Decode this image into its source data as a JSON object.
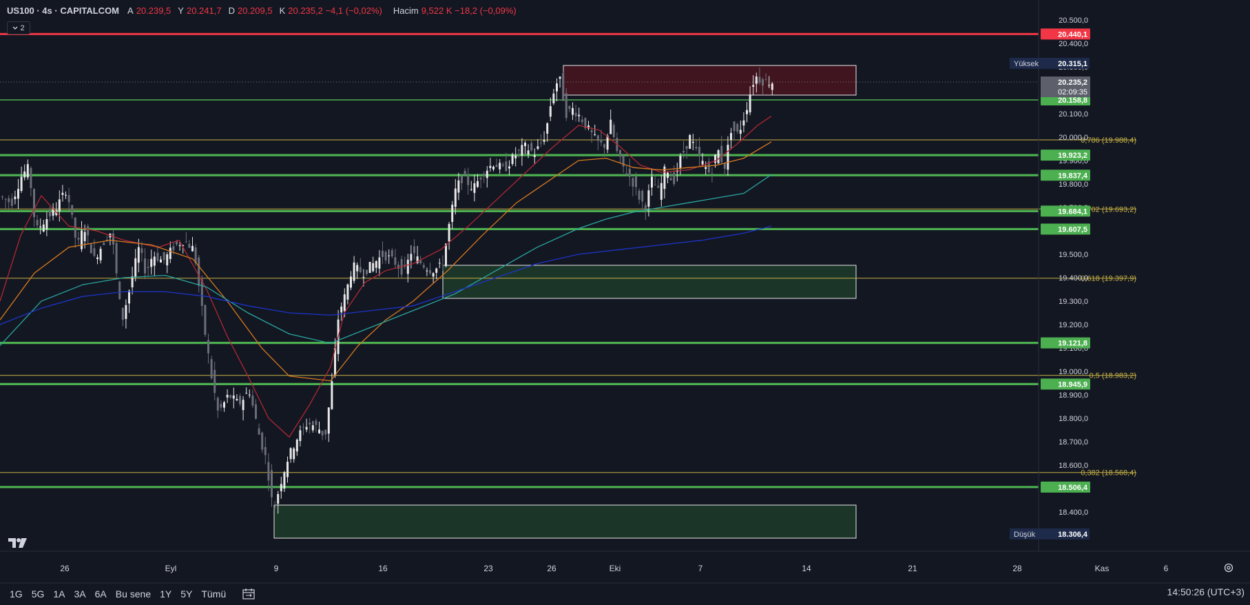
{
  "header": {
    "symbol": "US100 · 4s · CAPITALCOM",
    "open_label": "A",
    "open": "20.239,5",
    "high_label": "Y",
    "high": "20.241,7",
    "low_label": "D",
    "low": "20.209,5",
    "close_label": "K",
    "close": "20.235,2 −4,1 (−0,02%)",
    "volume_label": "Hacim",
    "volume": "9,522 K −18,2 (−0,09%)",
    "indicator_count": "2"
  },
  "price_axis": {
    "ticks": [
      "20.500,0",
      "20.400,0",
      "20.300,0",
      "20.200,0",
      "20.100,0",
      "20.000,0",
      "19.900,0",
      "19.800,0",
      "19.700,0",
      "19.600,0",
      "19.500,0",
      "19.400,0",
      "19.300,0",
      "19.200,0",
      "19.100,0",
      "19.000,0",
      "18.900,0",
      "18.800,0",
      "18.700,0",
      "18.600,0",
      "18.500,0",
      "18.400,0",
      "18.300,0"
    ]
  },
  "time_axis": {
    "labels": [
      "26",
      "Eyl",
      "9",
      "16",
      "23",
      "26",
      "Eki",
      "7",
      "14",
      "21",
      "28",
      "Kas",
      "6"
    ]
  },
  "levels": {
    "resistance_red": "20.440,1",
    "high_label": "Yüksek",
    "high_value": "20.315,1",
    "current_price": "20.235,2",
    "countdown": "02:09:35",
    "low_label": "Düşük",
    "low_value": "18.306,4",
    "green": [
      "20.158,8",
      "19.923,2",
      "19.837,4",
      "19.684,1",
      "19.607,5",
      "19.121,8",
      "18.945,9",
      "18.506,4"
    ],
    "fib": [
      "0,786 (19.988,4)",
      "0,702 (19.693,2)",
      "0,618 (19.397,9)",
      "0,5 (18.983,2)",
      "0,382 (18.568,4)"
    ]
  },
  "colors": {
    "background": "#131722",
    "green_level": "#4caf50",
    "red_level": "#f23645",
    "fib_line": "#c8b245",
    "candle": "#e8e8e8",
    "zone_red": "#4a1520",
    "zone_green": "#1e3b2a",
    "ma_red": "#b22833",
    "ma_orange": "#d97a1e",
    "ma_teal": "#2aa6a0",
    "ma_blue": "#1d34c9"
  },
  "bottom_bar": {
    "timeframes": [
      "1G",
      "5G",
      "1A",
      "3A",
      "6A",
      "Bu sene",
      "1Y",
      "5Y",
      "Tümü"
    ],
    "clock": "14:50:26 (UTC+3)"
  },
  "icons": [
    "tradingview-logo-icon",
    "settings-gear-icon",
    "calendar-range-icon",
    "chevron-down-icon"
  ]
}
